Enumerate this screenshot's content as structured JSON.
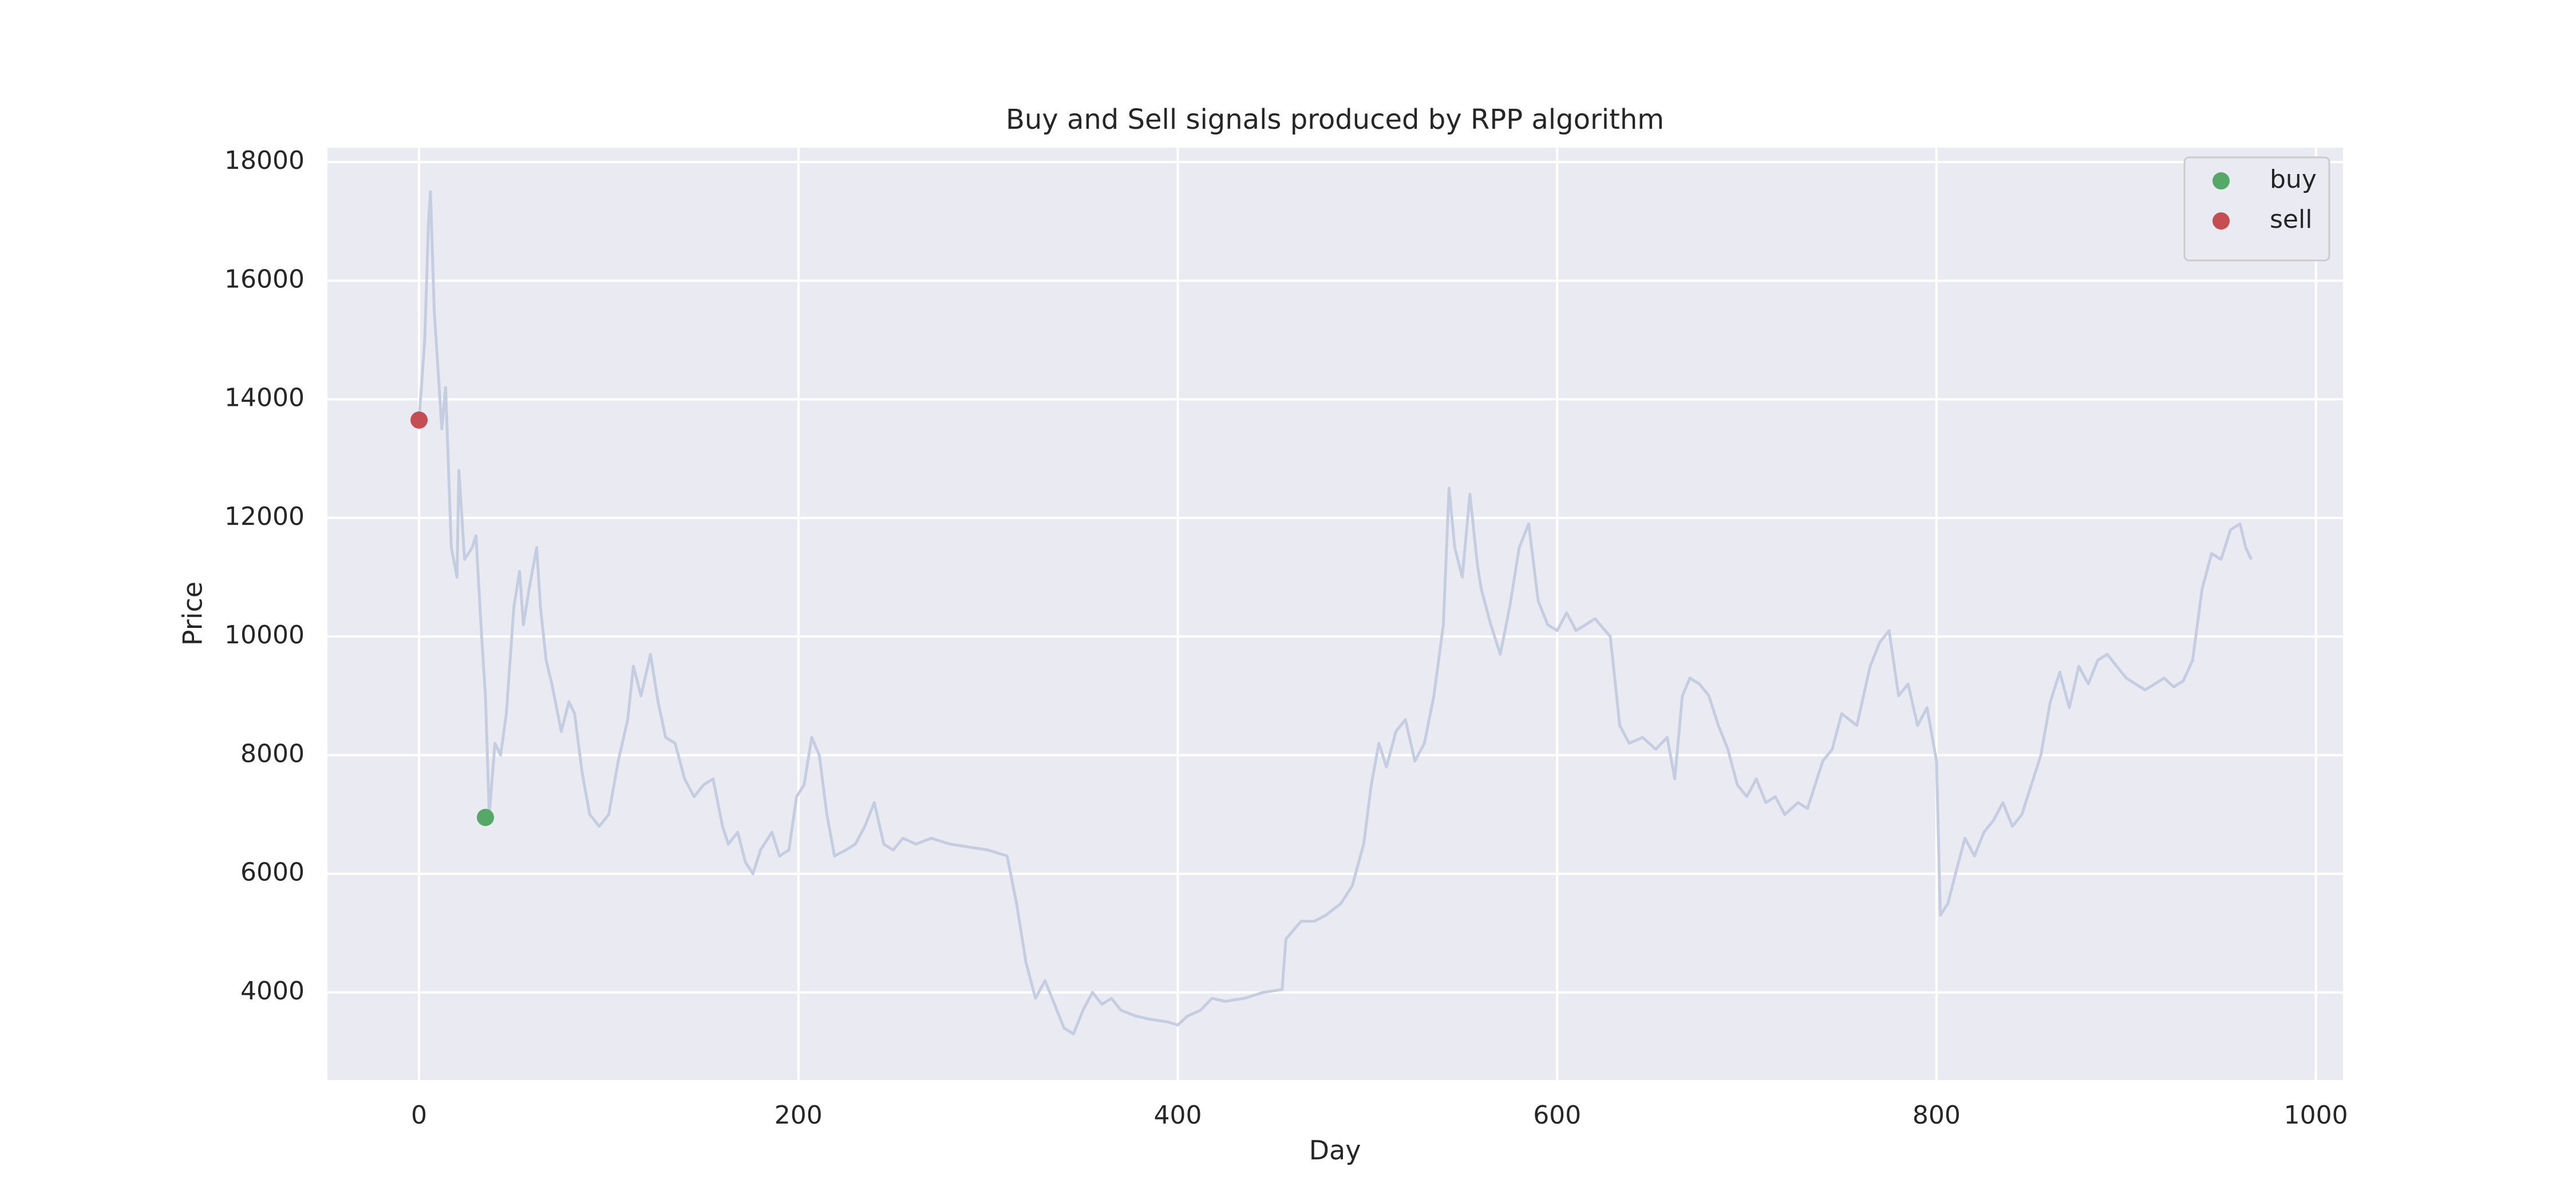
{
  "chart_data": {
    "type": "line",
    "title": "Buy and Sell signals produced by RPP algorithm",
    "xlabel": "Day",
    "ylabel": "Price",
    "xlim": [
      -48.3,
      1014.3
    ],
    "ylim": [
      2522,
      18242
    ],
    "xticks": [
      0,
      200,
      400,
      600,
      800,
      1000
    ],
    "yticks": [
      4000,
      6000,
      8000,
      10000,
      12000,
      14000,
      16000,
      18000
    ],
    "grid": true,
    "legend": "upper right",
    "series": [
      {
        "color": "#c5cde0",
        "x": [
          0,
          3,
          5,
          6,
          8,
          10,
          12,
          14,
          17,
          20,
          21,
          24,
          28,
          30,
          33,
          35,
          37,
          40,
          43,
          46,
          50,
          53,
          55,
          58,
          62,
          64,
          67,
          70,
          75,
          79,
          82,
          86,
          90,
          95,
          100,
          105,
          110,
          113,
          117,
          122,
          126,
          130,
          135,
          140,
          145,
          150,
          155,
          160,
          163,
          168,
          172,
          176,
          180,
          186,
          190,
          195,
          199,
          203,
          207,
          211,
          215,
          219,
          225,
          230,
          235,
          240,
          245,
          250,
          255,
          262,
          270,
          280,
          290,
          300,
          310,
          315,
          320,
          325,
          330,
          335,
          340,
          345,
          350,
          355,
          360,
          365,
          370,
          378,
          385,
          395,
          400,
          405,
          412,
          418,
          425,
          435,
          445,
          455,
          457,
          465,
          472,
          478,
          486,
          492,
          498,
          502,
          506,
          510,
          515,
          520,
          525,
          530,
          535,
          540,
          543,
          546,
          550,
          554,
          558,
          560,
          565,
          570,
          575,
          580,
          585,
          590,
          595,
          600,
          605,
          610,
          620,
          628,
          633,
          638,
          645,
          652,
          658,
          662,
          666,
          670,
          675,
          680,
          685,
          690,
          695,
          700,
          705,
          710,
          715,
          720,
          727,
          732,
          740,
          745,
          750,
          758,
          765,
          770,
          775,
          780,
          785,
          790,
          795,
          800,
          802,
          806,
          810,
          815,
          820,
          825,
          830,
          835,
          840,
          845,
          850,
          855,
          860,
          865,
          870,
          875,
          880,
          885,
          890,
          895,
          900,
          905,
          910,
          915,
          920,
          925,
          930,
          935,
          940,
          945,
          950,
          955,
          960,
          963,
          966
        ],
        "values": [
          13650,
          15000,
          17000,
          17500,
          15500,
          14500,
          13500,
          14200,
          11500,
          11000,
          12800,
          11300,
          11500,
          11700,
          10000,
          9000,
          7000,
          8200,
          8000,
          8700,
          10500,
          11100,
          10200,
          10800,
          11500,
          10500,
          9600,
          9200,
          8400,
          8900,
          8700,
          7700,
          7000,
          6800,
          7000,
          7900,
          8600,
          9500,
          9000,
          9700,
          8900,
          8300,
          8200,
          7600,
          7300,
          7500,
          7600,
          6800,
          6500,
          6700,
          6200,
          6000,
          6400,
          6700,
          6300,
          6400,
          7300,
          7500,
          8300,
          8000,
          7000,
          6300,
          6400,
          6500,
          6800,
          7200,
          6500,
          6400,
          6600,
          6500,
          6600,
          6500,
          6450,
          6400,
          6300,
          5500,
          4500,
          3900,
          4200,
          3800,
          3400,
          3300,
          3700,
          4000,
          3800,
          3900,
          3700,
          3600,
          3550,
          3500,
          3450,
          3600,
          3700,
          3900,
          3850,
          3900,
          4000,
          4050,
          4900,
          5200,
          5200,
          5300,
          5500,
          5800,
          6500,
          7500,
          8200,
          7800,
          8400,
          8600,
          7900,
          8200,
          9000,
          10200,
          12500,
          11500,
          11000,
          12400,
          11200,
          10800,
          10200,
          9700,
          10500,
          11500,
          11900,
          10600,
          10200,
          10100,
          10400,
          10100,
          10300,
          10000,
          8500,
          8200,
          8300,
          8100,
          8300,
          7600,
          9000,
          9300,
          9200,
          9000,
          8500,
          8100,
          7500,
          7300,
          7600,
          7200,
          7300,
          7000,
          7200,
          7100,
          7900,
          8100,
          8700,
          8500,
          9500,
          9900,
          10100,
          9000,
          9200,
          8500,
          8800,
          7900,
          5300,
          5500,
          6000,
          6600,
          6300,
          6700,
          6900,
          7200,
          6800,
          7000,
          7500,
          8000,
          8900,
          9400,
          8800,
          9500,
          9200,
          9600,
          9700,
          9500,
          9300,
          9200,
          9100,
          9200,
          9300,
          9150,
          9250,
          9600,
          10800,
          11400,
          11300,
          11800,
          11900,
          11500,
          11300
        ]
      },
      {
        "name": "buy",
        "type": "scatter",
        "color": "#55a868",
        "x": [
          35
        ],
        "values": [
          6950
        ]
      },
      {
        "name": "sell",
        "type": "scatter",
        "color": "#c44e52",
        "x": [
          0
        ],
        "values": [
          13650
        ]
      }
    ]
  }
}
